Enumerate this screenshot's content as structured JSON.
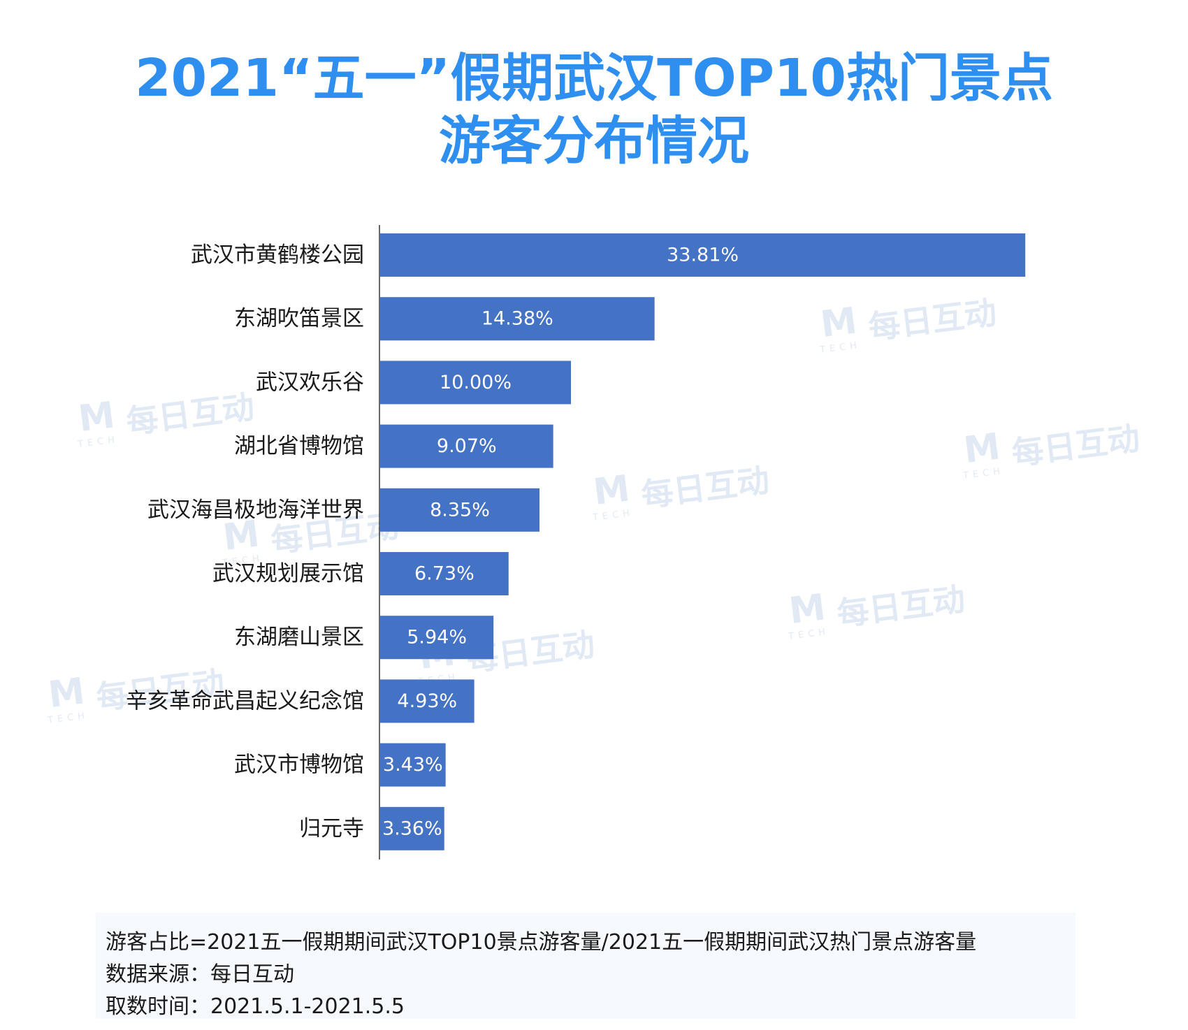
{
  "title": {
    "line1": "2021“五一”假期武汉TOP10热门景点",
    "line2": "游客分布情况"
  },
  "watermark": {
    "mark": "M",
    "tech": "TECH",
    "text": "每日互动"
  },
  "footnote": {
    "formula": "游客占比=2021五一假期期间武汉TOP10景点游客量/2021五一假期期间武汉热门景点游客量",
    "source": "数据来源：每日互动",
    "period": "取数时间：2021.5.1-2021.5.5"
  },
  "colors": {
    "title": "#2e8ff0",
    "bar": "#4472c4"
  },
  "chart_data": {
    "type": "bar",
    "orientation": "horizontal",
    "categories": [
      "武汉市黄鹤楼公园",
      "东湖吹笛景区",
      "武汉欢乐谷",
      "湖北省博物馆",
      "武汉海昌极地海洋世界",
      "武汉规划展示馆",
      "东湖磨山景区",
      "辛亥革命武昌起义纪念馆",
      "武汉市博物馆",
      "归元寺"
    ],
    "values": [
      33.81,
      14.38,
      10.0,
      9.07,
      8.35,
      6.73,
      5.94,
      4.93,
      3.43,
      3.36
    ],
    "value_labels": [
      "33.81%",
      "14.38%",
      "10.00%",
      "9.07%",
      "8.35%",
      "6.73%",
      "5.94%",
      "4.93%",
      "3.43%",
      "3.36%"
    ],
    "xlim": [
      0,
      34.5
    ],
    "grid": false,
    "legend": "none"
  }
}
